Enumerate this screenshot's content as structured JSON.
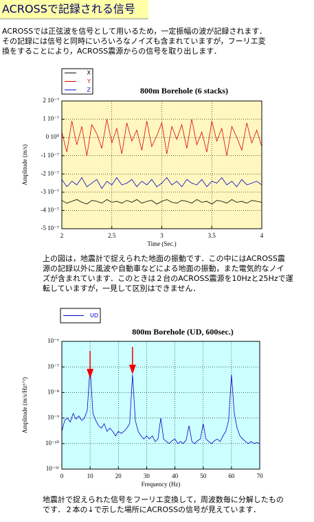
{
  "header": {
    "title": "ACROSSで記録される信号"
  },
  "intro": {
    "lines": [
      "ACROSSでは正弦波を信号として用いるため，一定振幅の波が記録されます．",
      "その記録には信号と同時にいろいろなノイズも含まれていますが，フーリエ変",
      "換をすることにより，ACROSS震源からの信号を取り出します．"
    ]
  },
  "chart_data": [
    {
      "type": "line",
      "title": "800m Borehole  (6 stacks)",
      "x_label": "Time (Sec.)",
      "y_label": "Amplitude (m/s)",
      "x": [
        2.0,
        2.05,
        2.1,
        2.15,
        2.2,
        2.25,
        2.3,
        2.35,
        2.4,
        2.45,
        2.5,
        2.55,
        2.6,
        2.65,
        2.7,
        2.75,
        2.8,
        2.85,
        2.9,
        2.95,
        3.0,
        3.05,
        3.1,
        3.15,
        3.2,
        3.25,
        3.3,
        3.35,
        3.4,
        3.45,
        3.5,
        3.55,
        3.6,
        3.65,
        3.7,
        3.75,
        3.8,
        3.85,
        3.9,
        3.95,
        4.0
      ],
      "series": [
        {
          "name": "X",
          "color": "#000000",
          "values": [
            -3.45e-07,
            -3.6e-07,
            -3.5e-07,
            -3.4e-07,
            -3.55e-07,
            -3.65e-07,
            -3.45e-07,
            -3.5e-07,
            -3.6e-07,
            -3.4e-07,
            -3.55e-07,
            -3.5e-07,
            -3.6e-07,
            -3.45e-07,
            -3.55e-07,
            -3.4e-07,
            -3.6e-07,
            -3.5e-07,
            -3.45e-07,
            -3.65e-07,
            -3.5e-07,
            -3.4e-07,
            -3.55e-07,
            -3.6e-07,
            -3.45e-07,
            -3.5e-07,
            -3.6e-07,
            -3.4e-07,
            -3.55e-07,
            -3.5e-07,
            -3.65e-07,
            -3.45e-07,
            -3.5e-07,
            -3.6e-07,
            -3.4e-07,
            -3.55e-07,
            -3.5e-07,
            -3.6e-07,
            -3.45e-07,
            -3.5e-07,
            -3.55e-07
          ]
        },
        {
          "name": "Y",
          "color": "#dd0000",
          "values": [
            3e-08,
            -8e-08,
            9e-08,
            -4e-08,
            6e-08,
            -1e-07,
            7e-08,
            2e-08,
            -6e-08,
            1e-07,
            -3e-08,
            5e-08,
            -9e-08,
            8e-08,
            -2e-08,
            4e-08,
            -7e-08,
            9e-08,
            -5e-08,
            1e-08,
            8e-08,
            -9e-08,
            6e-08,
            -1e-08,
            7e-08,
            -6e-08,
            1e-07,
            -4e-08,
            3e-08,
            -8e-08,
            9e-08,
            -2e-08,
            5e-08,
            -1e-07,
            6e-08,
            0.0,
            -7e-08,
            8e-08,
            -3e-08,
            4e-08,
            -5e-08
          ]
        },
        {
          "name": "Z",
          "color": "#0000cc",
          "values": [
            -2.3e-07,
            -2.7e-07,
            -2.4e-07,
            -2.6e-07,
            -2.2e-07,
            -2.7e-07,
            -2.5e-07,
            -2.3e-07,
            -2.8e-07,
            -2.4e-07,
            -2.6e-07,
            -2.2e-07,
            -2.6e-07,
            -2.5e-07,
            -2.3e-07,
            -2.7e-07,
            -2.4e-07,
            -2.6e-07,
            -2.3e-07,
            -2.7e-07,
            -2.5e-07,
            -2.2e-07,
            -2.6e-07,
            -2.4e-07,
            -2.7e-07,
            -2.3e-07,
            -2.5e-07,
            -2.6e-07,
            -2.3e-07,
            -2.7e-07,
            -2.4e-07,
            -2.5e-07,
            -2.2e-07,
            -2.6e-07,
            -2.4e-07,
            -2.7e-07,
            -2.3e-07,
            -2.6e-07,
            -2.5e-07,
            -2.4e-07,
            -2.6e-07
          ]
        }
      ],
      "xlim": [
        2,
        4
      ],
      "xticks": [
        2,
        2.5,
        3,
        3.5,
        4
      ],
      "ylim": [
        -5e-07,
        2e-07
      ],
      "yticks": [
        {
          "value": 2e-07,
          "label": "2 10⁻⁷"
        },
        {
          "value": 1e-07,
          "label": "1 10⁻⁷"
        },
        {
          "value": 0,
          "label": "0 10⁰"
        },
        {
          "value": -1e-07,
          "label": "-1 10⁻⁷"
        },
        {
          "value": -2e-07,
          "label": "-2 10⁻⁷"
        },
        {
          "value": -3e-07,
          "label": "-3 10⁻⁷"
        },
        {
          "value": -4e-07,
          "label": "-4 10⁻⁷"
        },
        {
          "value": -5e-07,
          "label": "-5 10⁻⁷"
        }
      ],
      "grid": true,
      "background": "#fff7bf"
    },
    {
      "type": "line",
      "title": "800m Borehole (UD, 600sec.)",
      "x_label": "Frequency (Hz)",
      "y_label": "Amplitude (m/s/Hz¹ᐟ²)",
      "x": [
        0,
        1,
        2,
        3,
        4,
        5,
        6,
        7,
        8,
        9,
        10,
        11,
        12,
        13,
        14,
        15,
        16,
        17,
        18,
        19,
        20,
        21,
        22,
        23,
        24,
        25,
        26,
        27,
        28,
        29,
        30,
        31,
        32,
        33,
        34,
        35,
        36,
        37,
        38,
        39,
        40,
        41,
        42,
        43,
        44,
        45,
        46,
        47,
        48,
        49,
        50,
        51,
        52,
        53,
        54,
        55,
        56,
        57,
        58,
        59,
        60,
        61,
        62,
        63,
        64,
        65,
        66,
        67,
        68,
        69,
        70
      ],
      "series": [
        {
          "name": "UD",
          "color": "#0000cc",
          "values": [
            3e-10,
            8e-10,
            1e-09,
            7e-10,
            1.5e-09,
            9e-10,
            1.2e-09,
            8e-10,
            1e-09,
            2e-09,
            1e-07,
            1.5e-09,
            8e-10,
            5e-10,
            4e-10,
            6e-10,
            3e-10,
            4e-10,
            3e-10,
            2e-10,
            3e-10,
            2.5e-10,
            3e-10,
            4e-10,
            6e-10,
            5e-08,
            8e-10,
            3e-10,
            2e-10,
            1.5e-10,
            2e-10,
            1.5e-10,
            2e-10,
            1.2e-10,
            1.5e-10,
            1e-09,
            1.5e-10,
            1.2e-10,
            1e-10,
            1.3e-10,
            1.5e-10,
            1e-10,
            1.2e-10,
            1e-10,
            1.4e-10,
            5e-10,
            1.2e-10,
            1e-10,
            1.3e-10,
            1.5e-10,
            6e-10,
            1.5e-10,
            1.2e-10,
            1e-10,
            1.3e-10,
            1.5e-10,
            1.2e-10,
            2e-10,
            3e-10,
            8e-10,
            5e-08,
            1.5e-09,
            4e-10,
            2e-10,
            1.5e-10,
            1.2e-10,
            1e-10,
            1.2e-10,
            1e-10,
            1.1e-10,
            1e-10
          ]
        }
      ],
      "xlim": [
        0,
        70
      ],
      "xticks": [
        0,
        10,
        20,
        30,
        40,
        50,
        60,
        70
      ],
      "ylim": [
        1e-11,
        1e-06
      ],
      "log_y": true,
      "yticks": [
        {
          "value": 1e-06,
          "label": "10⁻⁶"
        },
        {
          "value": 1e-07,
          "label": "10⁻⁷"
        },
        {
          "value": 1e-08,
          "label": "10⁻⁸"
        },
        {
          "value": 1e-09,
          "label": "10⁻⁹"
        },
        {
          "value": 1e-10,
          "label": "10⁻¹⁰"
        },
        {
          "value": 1e-11,
          "label": "10⁻¹¹"
        }
      ],
      "grid": true,
      "background": "#ccffff",
      "arrows": [
        10,
        25
      ],
      "arrow_color": "#ee0000"
    }
  ],
  "captions": [
    [
      "上の図は，地震計で捉えられた地面の振動です．この中にはACROSS震",
      "源の記録以外に風波や自動車などによる地面の振動，また電気的なノイ",
      "ズが含まれています．このときは２台のACROSS震源を10Hzと25Hzで運",
      "転していますが，一見して区別はできません．"
    ],
    [
      "地震計で捉えられた信号をフーリエ変換して，周波数毎に分解したもの",
      "です．２本の↓で示した場所にACROSSの信号が見えています．"
    ]
  ]
}
